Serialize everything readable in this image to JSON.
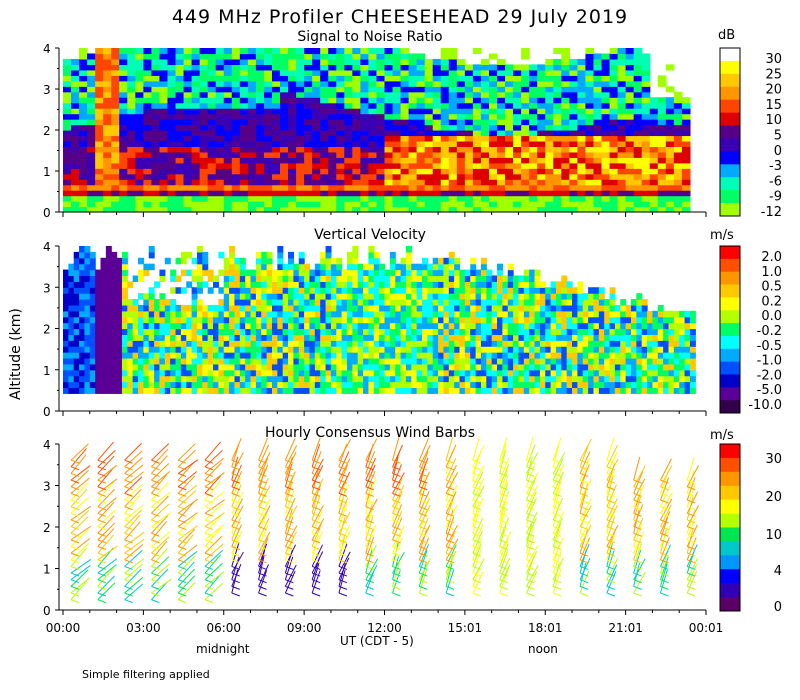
{
  "title": "449 MHz Profiler CHEESEHEAD 29 July 2019",
  "ylabel": "Altitude (km)",
  "xlabel": "UT  (CDT - 5)",
  "x_ticks": [
    "00:00",
    "03:00",
    "06:00",
    "09:00",
    "12:00",
    "15:01",
    "18:01",
    "21:01",
    "00:01"
  ],
  "local_labels": [
    "midnight",
    "noon"
  ],
  "footnote": "Simple filtering applied",
  "panels": [
    {
      "title": "Signal to Noise Ratio",
      "unit": "dB"
    },
    {
      "title": "Vertical Velocity",
      "unit": "m/s"
    },
    {
      "title": "Hourly Consensus Wind Barbs",
      "unit": "m/s"
    }
  ],
  "chart_data": [
    {
      "type": "heatmap",
      "title": "Signal to Noise Ratio",
      "xlabel": "UT (CDT - 5)",
      "ylabel": "Altitude (km)",
      "xlim": [
        0,
        24
      ],
      "ylim": [
        0,
        4
      ],
      "y_ticks": [
        "0",
        "1",
        "2",
        "3",
        "4"
      ],
      "colorbar": {
        "unit": "dB",
        "labels": [
          "30",
          "25",
          "20",
          "15",
          "10",
          "5",
          "0",
          "-3",
          "-6",
          "-9",
          "-12"
        ],
        "colors": [
          "#ffffff",
          "#ffff00",
          "#ffc800",
          "#ff9600",
          "#ff4600",
          "#dc0000",
          "#550088",
          "#3c00b4",
          "#0000ff",
          "#00aaff",
          "#00ffb4",
          "#00ff64",
          "#a0ff00"
        ]
      }
    },
    {
      "type": "heatmap",
      "title": "Vertical Velocity",
      "xlabel": "UT (CDT - 5)",
      "ylabel": "Altitude (km)",
      "xlim": [
        0,
        24
      ],
      "ylim": [
        0,
        4
      ],
      "y_ticks": [
        "0",
        "1",
        "2",
        "3",
        "4"
      ],
      "colorbar": {
        "unit": "m/s",
        "labels": [
          "2.0",
          "1.0",
          "0.5",
          "0.2",
          "0.0",
          "-0.2",
          "-0.5",
          "-1.0",
          "-2.0",
          "-5.0",
          "-10.0"
        ],
        "colors": [
          "#ff0000",
          "#ff5000",
          "#ff9600",
          "#ffc800",
          "#ffff00",
          "#b4ff00",
          "#00ff64",
          "#00ffff",
          "#00aaff",
          "#0050ff",
          "#0000c8",
          "#5a0096",
          "#32004b"
        ]
      }
    },
    {
      "type": "scatter",
      "title": "Hourly Consensus Wind Barbs",
      "xlabel": "UT (CDT - 5)",
      "ylabel": "Altitude (km)",
      "xlim": [
        0,
        24
      ],
      "ylim": [
        0,
        4
      ],
      "y_ticks": [
        "0",
        "1",
        "2",
        "3",
        "4"
      ],
      "colorbar": {
        "unit": "m/s",
        "labels": [
          "30",
          "20",
          "10",
          "4",
          "0"
        ],
        "colors": [
          "#ff0000",
          "#ff5000",
          "#ff9600",
          "#ffc800",
          "#ffff00",
          "#b4ff00",
          "#00e650",
          "#00c8c8",
          "#0096ff",
          "#0000ff",
          "#3200b4",
          "#5a0064"
        ]
      }
    }
  ]
}
